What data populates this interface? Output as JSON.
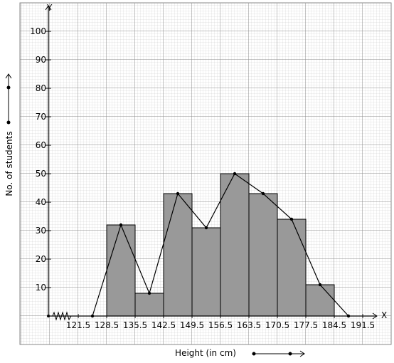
{
  "chart_data": {
    "type": "histogram",
    "x_label": "Height (in cm)",
    "y_label": "No. of students",
    "x_axis_letter": "X",
    "y_axis_letter": "Y",
    "bins": [
      128.5,
      135.5,
      142.5,
      149.5,
      156.5,
      163.5,
      170.5,
      177.5,
      184.5
    ],
    "counts": [
      32,
      8,
      43,
      31,
      50,
      43,
      34,
      11
    ],
    "color": "#999999",
    "polygon": {
      "x": [
        125,
        132,
        139,
        146,
        153,
        160,
        167,
        174,
        181,
        188
      ],
      "values": [
        0,
        32,
        8,
        43,
        31,
        50,
        43,
        34,
        11,
        0
      ],
      "color": "#000000"
    },
    "xlim": [
      114.15,
      195
    ],
    "ylim": [
      0,
      108.5
    ],
    "xticks": [
      121.5,
      128.5,
      135.5,
      142.5,
      149.5,
      156.5,
      163.5,
      170.5,
      177.5,
      184.5,
      191.5
    ],
    "yticks": [
      10,
      20,
      30,
      40,
      50,
      60,
      70,
      80,
      90,
      100
    ],
    "grid": true
  }
}
